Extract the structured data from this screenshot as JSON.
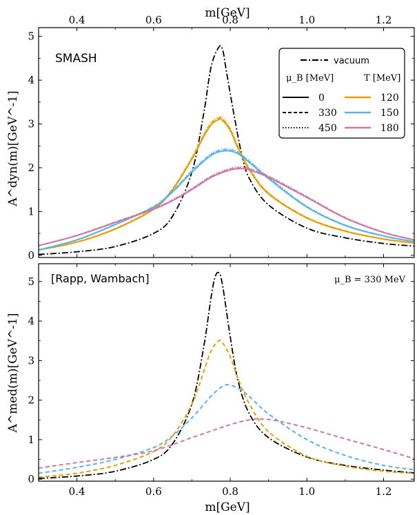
{
  "colors": {
    "vacuum": "#000000",
    "T120": "#e69f00",
    "T150": "#56b4e9",
    "T180": "#cc79a7"
  },
  "chart_data": [
    {
      "type": "line",
      "panel": "top",
      "annotation": "SMASH",
      "xlabel": "m[GeV]",
      "ylabel": "A^dyn(m)[GeV^-1]",
      "xlim": [
        0.3,
        1.28
      ],
      "ylim": [
        -0.05,
        5.2
      ],
      "xticks": [
        "0.4",
        "0.6",
        "0.8",
        "1.0",
        "1.2"
      ],
      "yticks": [
        "0",
        "1",
        "2",
        "3",
        "4",
        "5"
      ],
      "grid": false,
      "legend": {
        "placement": "top-right",
        "vacuum_label": "vacuum",
        "muB_header": "μ_B [MeV]",
        "T_header": "T [MeV]",
        "muB_values": [
          "0",
          "330",
          "450"
        ],
        "T_values": [
          "120",
          "150",
          "180"
        ]
      },
      "series": [
        {
          "name": "vacuum",
          "style": "dashdot",
          "color": "#000000",
          "x": [
            0.3,
            0.4,
            0.5,
            0.6,
            0.65,
            0.7,
            0.73,
            0.75,
            0.77,
            0.78,
            0.79,
            0.81,
            0.83,
            0.85,
            0.9,
            1.0,
            1.1,
            1.2,
            1.28
          ],
          "y": [
            0.02,
            0.08,
            0.2,
            0.5,
            0.9,
            1.9,
            3.2,
            4.3,
            4.75,
            4.7,
            4.2,
            3.2,
            2.3,
            1.75,
            1.15,
            0.62,
            0.4,
            0.27,
            0.21
          ]
        },
        {
          "name": "120",
          "style": "solid",
          "color": "#e69f00",
          "x": [
            0.3,
            0.4,
            0.5,
            0.6,
            0.65,
            0.7,
            0.73,
            0.75,
            0.77,
            0.78,
            0.8,
            0.82,
            0.85,
            0.9,
            1.0,
            1.1,
            1.2,
            1.28
          ],
          "y": [
            0.12,
            0.3,
            0.6,
            1.05,
            1.5,
            2.2,
            2.7,
            2.98,
            3.1,
            3.08,
            2.85,
            2.45,
            1.95,
            1.4,
            0.85,
            0.55,
            0.37,
            0.28
          ]
        },
        {
          "name": "150",
          "style": "solid",
          "color": "#56b4e9",
          "x": [
            0.3,
            0.4,
            0.5,
            0.6,
            0.65,
            0.7,
            0.75,
            0.78,
            0.8,
            0.82,
            0.85,
            0.9,
            1.0,
            1.1,
            1.2,
            1.28
          ],
          "y": [
            0.12,
            0.35,
            0.7,
            1.1,
            1.45,
            1.9,
            2.28,
            2.38,
            2.38,
            2.32,
            2.12,
            1.75,
            1.1,
            0.68,
            0.44,
            0.31
          ]
        },
        {
          "name": "180",
          "style": "solid",
          "color": "#cc79a7",
          "x": [
            0.3,
            0.4,
            0.5,
            0.6,
            0.65,
            0.7,
            0.75,
            0.8,
            0.83,
            0.85,
            0.9,
            1.0,
            1.1,
            1.2,
            1.28
          ],
          "y": [
            0.22,
            0.45,
            0.75,
            1.05,
            1.25,
            1.5,
            1.78,
            1.95,
            1.98,
            1.95,
            1.78,
            1.32,
            0.85,
            0.52,
            0.35
          ]
        }
      ]
    },
    {
      "type": "line",
      "panel": "bottom",
      "annotation": "[Rapp, Wambach]",
      "annotation_right": "μ_B = 330 MeV",
      "xlabel": "m[GeV]",
      "ylabel": "A^med(m)[GeV^-1]",
      "xlim": [
        0.3,
        1.28
      ],
      "ylim": [
        -0.05,
        5.45
      ],
      "xticks": [
        "0.4",
        "0.6",
        "0.8",
        "1.0",
        "1.2"
      ],
      "yticks": [
        "0",
        "1",
        "2",
        "3",
        "4",
        "5"
      ],
      "grid": false,
      "series": [
        {
          "name": "vacuum",
          "style": "dashdot",
          "color": "#000000",
          "x": [
            0.3,
            0.4,
            0.5,
            0.6,
            0.65,
            0.7,
            0.73,
            0.75,
            0.76,
            0.77,
            0.78,
            0.8,
            0.82,
            0.85,
            0.9,
            1.0,
            1.1,
            1.2,
            1.28
          ],
          "y": [
            0.02,
            0.08,
            0.2,
            0.5,
            0.9,
            1.9,
            3.3,
            4.6,
            5.1,
            5.22,
            4.9,
            3.6,
            2.5,
            1.65,
            1.05,
            0.56,
            0.35,
            0.23,
            0.16
          ]
        },
        {
          "name": "120",
          "style": "dashed",
          "color": "#e69f00",
          "x": [
            0.3,
            0.4,
            0.5,
            0.6,
            0.65,
            0.7,
            0.73,
            0.75,
            0.77,
            0.78,
            0.8,
            0.82,
            0.85,
            0.9,
            1.0,
            1.1,
            1.2,
            1.28
          ],
          "y": [
            0.05,
            0.15,
            0.35,
            0.7,
            1.1,
            1.9,
            2.7,
            3.25,
            3.5,
            3.45,
            3.1,
            2.55,
            1.9,
            1.2,
            0.58,
            0.33,
            0.2,
            0.15
          ]
        },
        {
          "name": "150",
          "style": "dashed",
          "color": "#56b4e9",
          "x": [
            0.3,
            0.4,
            0.5,
            0.6,
            0.65,
            0.7,
            0.75,
            0.78,
            0.8,
            0.83,
            0.86,
            0.9,
            1.0,
            1.1,
            1.2,
            1.28
          ],
          "y": [
            0.15,
            0.3,
            0.5,
            0.8,
            1.1,
            1.55,
            2.1,
            2.35,
            2.38,
            2.25,
            2.0,
            1.65,
            1.0,
            0.6,
            0.35,
            0.24
          ]
        },
        {
          "name": "180",
          "style": "dashed",
          "color": "#cc79a7",
          "x": [
            0.3,
            0.4,
            0.5,
            0.6,
            0.7,
            0.8,
            0.85,
            0.88,
            0.92,
            1.0,
            1.1,
            1.2,
            1.28
          ],
          "y": [
            0.28,
            0.42,
            0.55,
            0.72,
            1.05,
            1.38,
            1.5,
            1.52,
            1.48,
            1.3,
            1.02,
            0.75,
            0.52
          ]
        }
      ]
    }
  ]
}
